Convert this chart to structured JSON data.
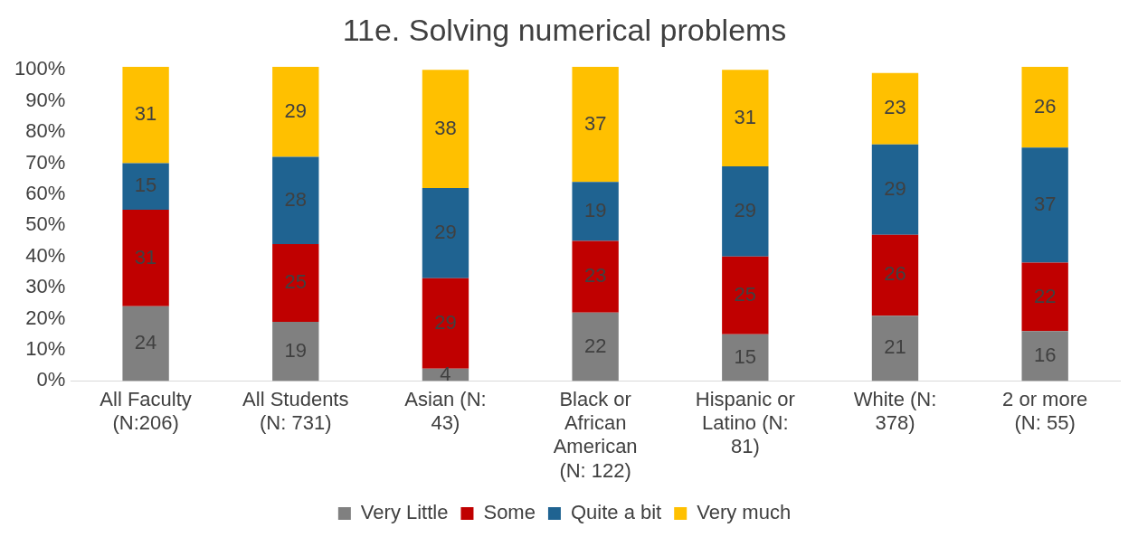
{
  "chart_data": {
    "type": "bar",
    "title": "11e. Solving numerical problems",
    "categories": [
      "All Faculty (N:206)",
      "All Students (N: 731)",
      "Asian (N: 43)",
      "Black or African American (N: 122)",
      "Hispanic or Latino (N: 81)",
      "White (N: 378)",
      "2 or more (N: 55)"
    ],
    "series": [
      {
        "name": "Very Little",
        "color": "#808080",
        "values": [
          24,
          19,
          4,
          22,
          15,
          21,
          16
        ]
      },
      {
        "name": "Some",
        "color": "#c00000",
        "values": [
          31,
          25,
          29,
          23,
          25,
          26,
          22
        ]
      },
      {
        "name": "Quite a bit",
        "color": "#1f6391",
        "values": [
          15,
          28,
          29,
          19,
          29,
          29,
          37
        ]
      },
      {
        "name": "Very much",
        "color": "#ffc000",
        "values": [
          31,
          29,
          38,
          37,
          31,
          23,
          26
        ]
      }
    ],
    "stacked": true,
    "data_labels": true,
    "legend": "bottom",
    "grid": false,
    "ylim": [
      0,
      101
    ],
    "yticks": [
      {
        "value": 0,
        "label": "0%"
      },
      {
        "value": 10,
        "label": "10%"
      },
      {
        "value": 20,
        "label": "20%"
      },
      {
        "value": 30,
        "label": "30%"
      },
      {
        "value": 40,
        "label": "40%"
      },
      {
        "value": 50,
        "label": "50%"
      },
      {
        "value": 60,
        "label": "60%"
      },
      {
        "value": 70,
        "label": "70%"
      },
      {
        "value": 80,
        "label": "80%"
      },
      {
        "value": 90,
        "label": "90%"
      },
      {
        "value": 100,
        "label": "100%"
      }
    ]
  }
}
